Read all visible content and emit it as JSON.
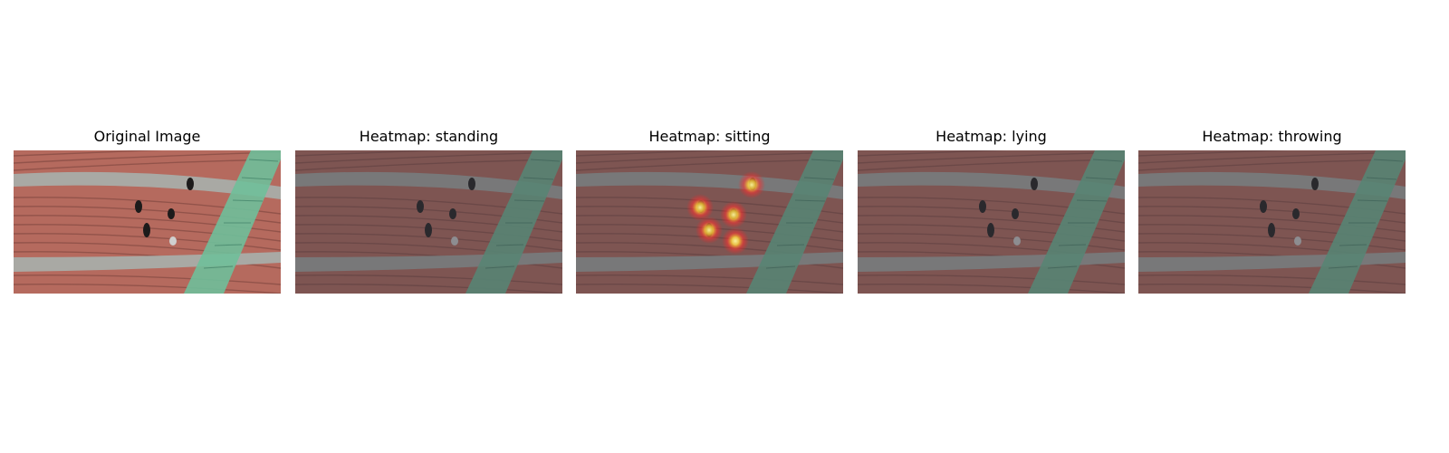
{
  "panels": [
    {
      "title": "Original Image"
    },
    {
      "title": "Heatmap: standing"
    },
    {
      "title": "Heatmap: sitting"
    },
    {
      "title": "Heatmap: lying"
    },
    {
      "title": "Heatmap: throwing"
    }
  ]
}
